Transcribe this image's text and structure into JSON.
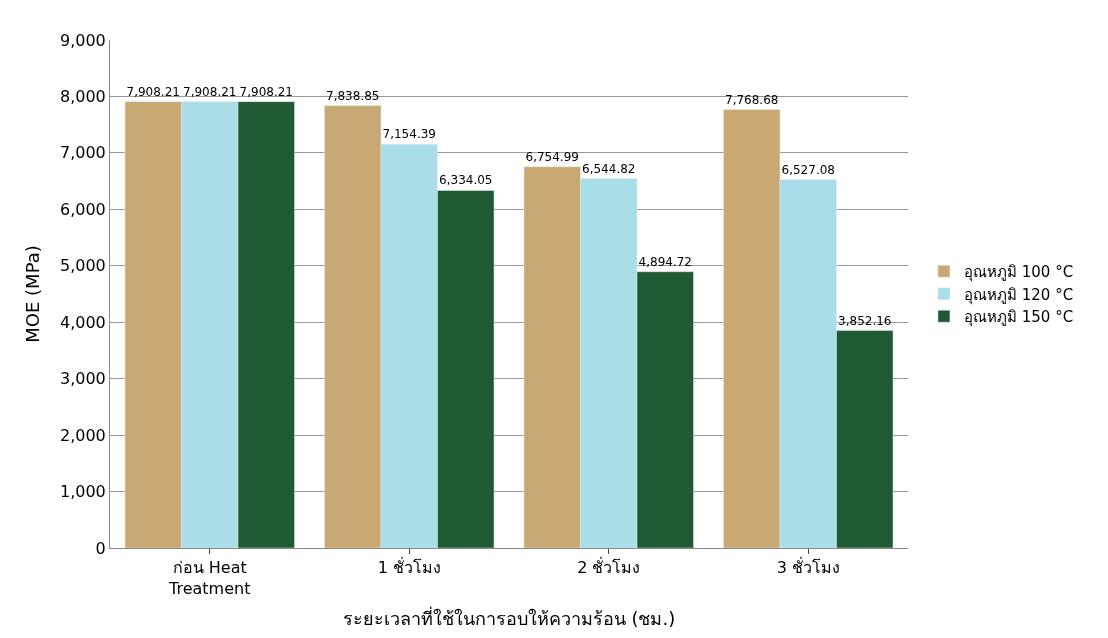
{
  "chart_data": {
    "type": "bar",
    "xlabel": "ระยะเวลาที่ใช้ในการอบให้ความร้อน (ชม.)",
    "ylabel": "MOE (MPa)",
    "categories": [
      "ก่อน Heat\nTreatment",
      "1 ชั่วโมง",
      "2 ชั่วโมง",
      "3 ชั่วโมง"
    ],
    "series": [
      {
        "name": "อุณหภูมิ 100 °C",
        "color": "#c9a973",
        "values": [
          7908.21,
          7838.85,
          6754.99,
          7768.68
        ],
        "value_labels": [
          "7,908.21",
          "7,838.85",
          "6,754.99",
          "7,768.68"
        ]
      },
      {
        "name": "อุณหภูมิ 120 °C",
        "color": "#a9dde8",
        "values": [
          7908.21,
          7154.39,
          6544.82,
          6527.08
        ],
        "value_labels": [
          "7,908.21",
          "7,154.39",
          "6,544.82",
          "6,527.08"
        ]
      },
      {
        "name": "อุณหภูมิ 150 °C",
        "color": "#1f5a33",
        "values": [
          7908.21,
          6334.05,
          4894.72,
          3852.16
        ],
        "value_labels": [
          "7,908.21",
          "6,334.05",
          "4,894.72",
          "3,852.16"
        ]
      }
    ],
    "ylim": [
      0,
      9000
    ],
    "yticks": [
      0,
      {
        "value": 1000,
        "label": "1,000"
      },
      {
        "value": 2000,
        "label": "2,000"
      },
      {
        "value": 3000,
        "label": "3,000"
      },
      {
        "value": 4000,
        "label": "4,000"
      },
      {
        "value": 5000,
        "label": "5,000"
      },
      {
        "value": 6000,
        "label": "6,000"
      },
      {
        "value": 7000,
        "label": "7,000"
      },
      {
        "value": 8000,
        "label": "8,000"
      },
      {
        "value": 9000,
        "label": "9,000"
      }
    ],
    "grid": "y",
    "legend": "right"
  }
}
